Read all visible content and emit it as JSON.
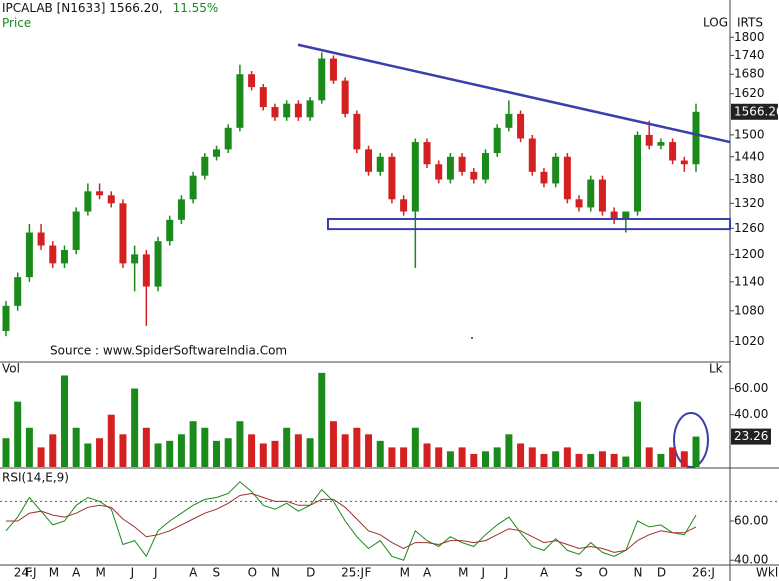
{
  "chart_data": [
    {
      "type": "candlestick",
      "title": "IPCALAB [N1633]",
      "last_price": {
        "value": 1566.2,
        "label": "1566.20"
      },
      "change": {
        "value": 11.55,
        "label": "11.55%"
      },
      "subtitle": "Price",
      "scale_label": "LOG",
      "corner_label": "IRTS",
      "source": "Source : www.SpiderSoftwareIndia.Com",
      "log": true,
      "categories": [
        null,
        "24:J",
        "F",
        null,
        "M",
        null,
        "A",
        null,
        "M",
        null,
        null,
        "J",
        null,
        "J",
        null,
        null,
        "A",
        null,
        "S",
        null,
        null,
        "O",
        null,
        "N",
        null,
        null,
        "D",
        null,
        null,
        "25:J",
        null,
        "F",
        null,
        null,
        "M",
        null,
        "A",
        null,
        null,
        "M",
        null,
        "J",
        null,
        "J",
        null,
        null,
        "A",
        null,
        null,
        "S",
        null,
        "O",
        null,
        null,
        "N",
        null,
        "D",
        null,
        null,
        "26:J"
      ],
      "open": [
        1040,
        1090,
        1150,
        1250,
        1220,
        1180,
        1210,
        1300,
        1350,
        1340,
        1320,
        1180,
        1200,
        1130,
        1230,
        1280,
        1330,
        1390,
        1440,
        1460,
        1520,
        1680,
        1640,
        1580,
        1550,
        1590,
        1550,
        1600,
        1730,
        1660,
        1560,
        1460,
        1400,
        1440,
        1330,
        1300,
        1480,
        1420,
        1380,
        1440,
        1400,
        1380,
        1450,
        1520,
        1560,
        1490,
        1400,
        1370,
        1440,
        1330,
        1310,
        1380,
        1300,
        1280,
        1300,
        1500,
        1470,
        1480,
        1430,
        1420
      ],
      "high": [
        1100,
        1160,
        1270,
        1270,
        1230,
        1220,
        1310,
        1370,
        1370,
        1350,
        1330,
        1220,
        1210,
        1240,
        1290,
        1340,
        1400,
        1450,
        1470,
        1530,
        1710,
        1690,
        1650,
        1590,
        1600,
        1600,
        1610,
        1750,
        1740,
        1670,
        1570,
        1470,
        1450,
        1450,
        1340,
        1490,
        1490,
        1430,
        1450,
        1450,
        1410,
        1460,
        1530,
        1600,
        1570,
        1500,
        1410,
        1450,
        1450,
        1340,
        1390,
        1390,
        1310,
        1300,
        1510,
        1540,
        1490,
        1490,
        1440,
        1590
      ],
      "low": [
        1030,
        1080,
        1140,
        1210,
        1170,
        1170,
        1200,
        1290,
        1330,
        1310,
        1170,
        1120,
        1050,
        1120,
        1220,
        1270,
        1320,
        1380,
        1430,
        1450,
        1510,
        1630,
        1570,
        1540,
        1540,
        1540,
        1540,
        1590,
        1650,
        1550,
        1450,
        1390,
        1390,
        1320,
        1290,
        1170,
        1410,
        1370,
        1370,
        1390,
        1370,
        1370,
        1440,
        1510,
        1480,
        1390,
        1360,
        1360,
        1320,
        1300,
        1300,
        1290,
        1270,
        1250,
        1290,
        1460,
        1460,
        1420,
        1400,
        1400
      ],
      "close": [
        1090,
        1150,
        1250,
        1220,
        1180,
        1210,
        1300,
        1350,
        1340,
        1320,
        1180,
        1200,
        1130,
        1230,
        1280,
        1330,
        1390,
        1440,
        1460,
        1520,
        1680,
        1640,
        1580,
        1550,
        1590,
        1550,
        1600,
        1730,
        1660,
        1560,
        1460,
        1400,
        1440,
        1330,
        1300,
        1480,
        1420,
        1380,
        1440,
        1400,
        1380,
        1450,
        1520,
        1560,
        1490,
        1400,
        1370,
        1440,
        1330,
        1310,
        1380,
        1300,
        1280,
        1300,
        1500,
        1470,
        1480,
        1430,
        1420,
        1566.2
      ],
      "up_color": "#1a8a1a",
      "down_color": "#d42020",
      "ylim": [
        1000,
        1880
      ],
      "yticks": [
        1020,
        1080,
        1140,
        1200,
        1260,
        1320,
        1380,
        1440,
        1500,
        1620,
        1680,
        1740,
        1800
      ],
      "trendline": [
        1775,
        1480
      ],
      "support_zone": [
        1258,
        1282
      ],
      "drawing_color": "#3b3faa"
    },
    {
      "type": "bar",
      "title": "Vol",
      "unit": "Lk",
      "values": [
        22,
        50,
        30,
        15,
        25,
        70,
        30,
        18,
        22,
        40,
        25,
        60,
        30,
        18,
        20,
        25,
        35,
        30,
        20,
        22,
        35,
        25,
        18,
        20,
        30,
        25,
        22,
        72,
        35,
        25,
        30,
        25,
        20,
        15,
        15,
        30,
        18,
        15,
        12,
        15,
        10,
        12,
        15,
        25,
        18,
        15,
        10,
        12,
        15,
        10,
        10,
        12,
        10,
        8,
        50,
        15,
        10,
        15,
        12,
        23.26
      ],
      "ylim": [
        0,
        78
      ],
      "yticks": [
        {
          "value": 40,
          "label": "40.00"
        },
        {
          "value": 60,
          "label": "60.00"
        }
      ]
    },
    {
      "type": "line",
      "title": "RSI(14,E,9)",
      "x_unit": "Wkl",
      "series": [
        {
          "color": "#1a8a1a",
          "values": [
            55,
            62,
            72,
            65,
            58,
            60,
            68,
            72,
            70,
            66,
            48,
            50,
            42,
            55,
            60,
            64,
            68,
            71,
            72,
            74,
            80,
            75,
            68,
            66,
            69,
            65,
            68,
            76,
            70,
            60,
            52,
            46,
            50,
            42,
            40,
            55,
            50,
            47,
            52,
            49,
            47,
            53,
            58,
            62,
            54,
            47,
            45,
            51,
            45,
            43,
            49,
            44,
            42,
            45,
            60,
            57,
            58,
            54,
            53,
            63
          ]
        },
        {
          "color": "#a03030",
          "values": [
            60,
            60,
            64,
            65,
            63,
            62,
            64,
            67,
            68,
            67,
            61,
            57,
            52,
            53,
            55,
            58,
            61,
            64,
            66,
            69,
            73,
            74,
            72,
            70,
            70,
            68,
            68,
            71,
            71,
            67,
            61,
            55,
            53,
            49,
            46,
            49,
            49,
            48,
            50,
            50,
            49,
            50,
            53,
            56,
            55,
            52,
            49,
            50,
            48,
            46,
            47,
            46,
            44,
            45,
            50,
            53,
            55,
            54,
            54,
            57
          ]
        }
      ],
      "ylim": [
        34,
        86
      ],
      "yticks": [
        {
          "value": 40,
          "label": "40.00"
        },
        {
          "value": 60,
          "label": "60.00"
        }
      ],
      "ref_line": 70
    }
  ]
}
